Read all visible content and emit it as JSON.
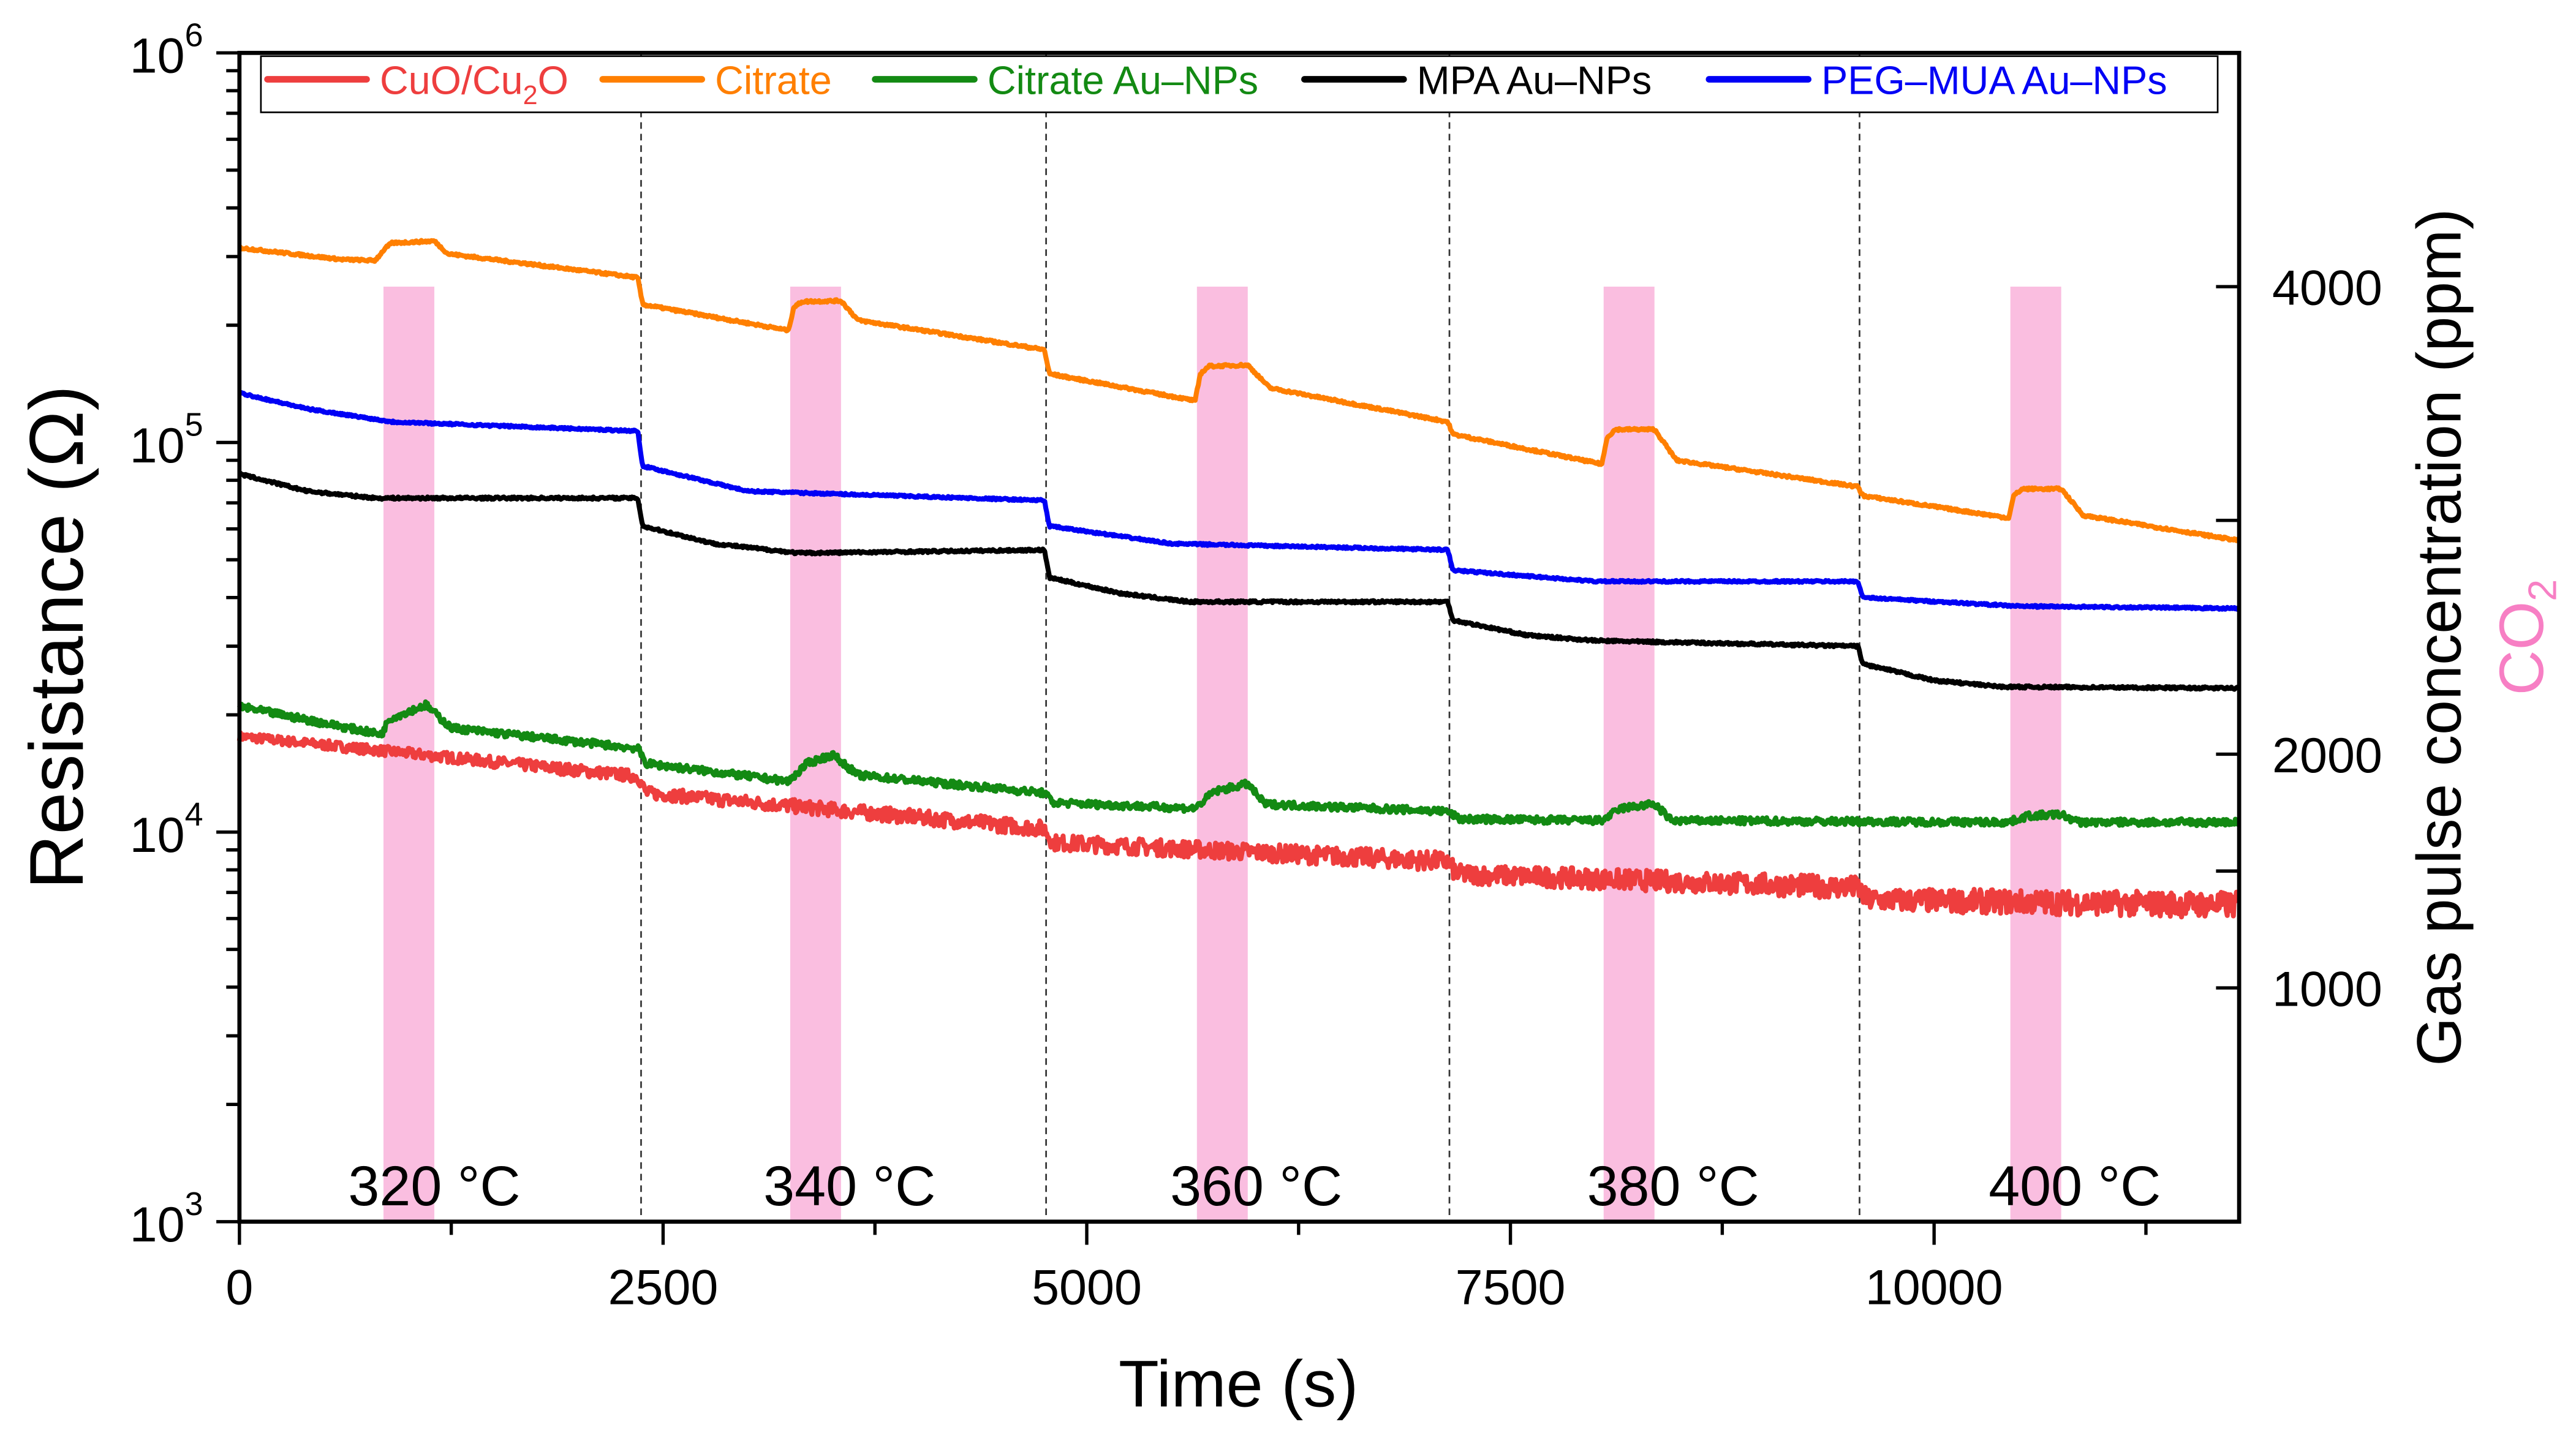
{
  "chart_data": {
    "type": "line",
    "xlabel": "Time (s)",
    "ylabel": "Resistance (Ω)",
    "y2label": "Gas pulse concentration (ppm)",
    "y2label_gas": "CO",
    "y2label_gas_sub": "2",
    "xlim": [
      0,
      11800
    ],
    "ylim": [
      1000,
      1000000
    ],
    "yscale": "log",
    "y2lim": [
      0,
      5000
    ],
    "x_ticks": [
      0,
      2500,
      5000,
      7500,
      10000
    ],
    "x_tick_labels": [
      "0",
      "2500",
      "5000",
      "7500",
      "10000"
    ],
    "y_ticks": [
      {
        "base": "10",
        "exp": "3",
        "value": 1000
      },
      {
        "base": "10",
        "exp": "4",
        "value": 10000
      },
      {
        "base": "10",
        "exp": "5",
        "value": 100000
      },
      {
        "base": "10",
        "exp": "6",
        "value": 1000000
      }
    ],
    "y2_ticks": [
      1000,
      1500,
      2000,
      3000,
      4000
    ],
    "y2_tick_labels": [
      {
        "value": 1000,
        "label": "1000"
      },
      {
        "value": 2000,
        "label": "2000"
      },
      {
        "value": 4000,
        "label": "4000"
      }
    ],
    "legend_position": "top",
    "gas_pulses": {
      "color": "#f9b3db",
      "concentration_ppm": 4000,
      "intervals": [
        [
          850,
          1150
        ],
        [
          3250,
          3550
        ],
        [
          5650,
          5950
        ],
        [
          8050,
          8350
        ],
        [
          10450,
          10750
        ]
      ]
    },
    "temperature_boundaries": [
      2370,
      4760,
      7140,
      9560
    ],
    "temperature_labels": [
      {
        "label": "320 °C",
        "center": 1150
      },
      {
        "label": "340 °C",
        "center": 3600
      },
      {
        "label": "360 °C",
        "center": 6000
      },
      {
        "label": "380 °C",
        "center": 8460
      },
      {
        "label": "400 °C",
        "center": 10830
      }
    ],
    "series": [
      {
        "name": "CuO/Cu",
        "sub": "2",
        "suffix": "O",
        "color": "#ee3e3e",
        "points": [
          [
            0,
            17600
          ],
          [
            2350,
            13900
          ],
          [
            2400,
            12600
          ],
          [
            4750,
            10200
          ],
          [
            4800,
            9400
          ],
          [
            7130,
            8400
          ],
          [
            7180,
            7800
          ],
          [
            9550,
            7200
          ],
          [
            9600,
            6700
          ],
          [
            11800,
            6500
          ]
        ]
      },
      {
        "name": "Citrate",
        "sub": "",
        "suffix": "",
        "color": "#ff7f00",
        "points": [
          [
            0,
            316000
          ],
          [
            600,
            295000
          ],
          [
            800,
            293000
          ],
          [
            860,
            315000
          ],
          [
            900,
            325000
          ],
          [
            1150,
            329000
          ],
          [
            1230,
            305000
          ],
          [
            2350,
            265000
          ],
          [
            2380,
            226000
          ],
          [
            3240,
            194000
          ],
          [
            3270,
            222000
          ],
          [
            3320,
            230000
          ],
          [
            3550,
            231000
          ],
          [
            3650,
            206000
          ],
          [
            4750,
            173000
          ],
          [
            4780,
            150000
          ],
          [
            5640,
            128000
          ],
          [
            5670,
            150000
          ],
          [
            5720,
            157000
          ],
          [
            5950,
            158000
          ],
          [
            6080,
            138000
          ],
          [
            7130,
            113000
          ],
          [
            7160,
            105000
          ],
          [
            8040,
            88000
          ],
          [
            8070,
            103000
          ],
          [
            8120,
            108000
          ],
          [
            8350,
            108000
          ],
          [
            8480,
            90000
          ],
          [
            9550,
            77000
          ],
          [
            9580,
            73000
          ],
          [
            10440,
            64000
          ],
          [
            10470,
            73000
          ],
          [
            10520,
            76000
          ],
          [
            10750,
            76000
          ],
          [
            10880,
            65000
          ],
          [
            11800,
            56000
          ]
        ]
      },
      {
        "name": "Citrate Au–NPs",
        "sub": "",
        "suffix": "",
        "color": "#138a13",
        "points": [
          [
            0,
            21000
          ],
          [
            840,
            17800
          ],
          [
            880,
            19500
          ],
          [
            1100,
            21200
          ],
          [
            1250,
            18500
          ],
          [
            2350,
            16400
          ],
          [
            2400,
            15000
          ],
          [
            3240,
            13500
          ],
          [
            3350,
            15000
          ],
          [
            3500,
            15800
          ],
          [
            3650,
            14000
          ],
          [
            4750,
            12600
          ],
          [
            4800,
            11900
          ],
          [
            5640,
            11500
          ],
          [
            5750,
            12700
          ],
          [
            5950,
            13300
          ],
          [
            6050,
            11800
          ],
          [
            7130,
            11300
          ],
          [
            7200,
            10800
          ],
          [
            8040,
            10700
          ],
          [
            8150,
            11500
          ],
          [
            8350,
            11800
          ],
          [
            8450,
            10700
          ],
          [
            10440,
            10600
          ],
          [
            10550,
            11000
          ],
          [
            10750,
            11100
          ],
          [
            10850,
            10600
          ],
          [
            11800,
            10600
          ]
        ]
      },
      {
        "name": "MPA Au–NPs",
        "sub": "",
        "suffix": "",
        "color": "#000000",
        "points": [
          [
            0,
            83000
          ],
          [
            400,
            75000
          ],
          [
            800,
            72000
          ],
          [
            2350,
            72000
          ],
          [
            2380,
            61000
          ],
          [
            2800,
            55000
          ],
          [
            3300,
            52000
          ],
          [
            4750,
            53000
          ],
          [
            4780,
            45000
          ],
          [
            5200,
            41000
          ],
          [
            5600,
            39000
          ],
          [
            7130,
            39000
          ],
          [
            7160,
            35000
          ],
          [
            7600,
            32000
          ],
          [
            8000,
            31000
          ],
          [
            9550,
            30000
          ],
          [
            9580,
            27000
          ],
          [
            10000,
            24500
          ],
          [
            10400,
            23600
          ],
          [
            11800,
            23400
          ]
        ]
      },
      {
        "name": "PEG–MUA Au–NPs",
        "sub": "",
        "suffix": "",
        "color": "#0000f5",
        "points": [
          [
            0,
            134000
          ],
          [
            400,
            122000
          ],
          [
            900,
            113000
          ],
          [
            2350,
            107000
          ],
          [
            2380,
            87000
          ],
          [
            3000,
            75000
          ],
          [
            4750,
            71000
          ],
          [
            4780,
            61000
          ],
          [
            5500,
            55000
          ],
          [
            7130,
            53000
          ],
          [
            7160,
            47000
          ],
          [
            8000,
            44000
          ],
          [
            9550,
            44000
          ],
          [
            9580,
            40000
          ],
          [
            10500,
            38000
          ],
          [
            11800,
            37500
          ]
        ]
      }
    ]
  }
}
